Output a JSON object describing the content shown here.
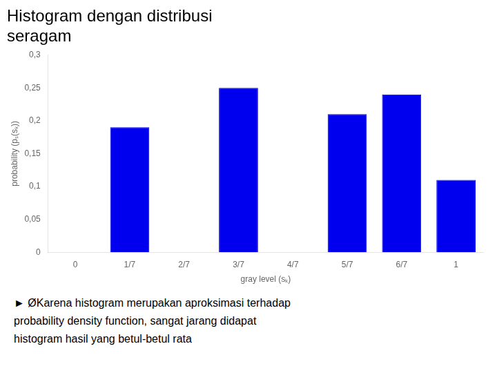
{
  "chart_data": {
    "type": "bar",
    "title": "Histogram dengan distribusi\nseragam",
    "categories": [
      "0",
      "1/7",
      "2/7",
      "3/7",
      "4/7",
      "5/7",
      "6/7",
      "1"
    ],
    "values": [
      0.0,
      0.19,
      0.0,
      0.25,
      0.0,
      0.21,
      0.24,
      0.11
    ],
    "color": "#0000EE",
    "xlabel": "gray level (sₖ)",
    "ylabel": "probability (pₛ(sₖ))",
    "ylim": [
      0,
      0.3
    ],
    "yticks": [
      0,
      {
        "value": 0.05,
        "label": "0,05"
      },
      {
        "value": 0.1,
        "label": "0,1"
      },
      {
        "value": 0.15,
        "label": "0,15"
      },
      {
        "value": 0.2,
        "label": "0,2"
      },
      {
        "value": 0.25,
        "label": "0,25"
      },
      {
        "value": 0.3,
        "label": "0,3"
      }
    ],
    "grid": false,
    "annotations": [
      "► ØKarena histogram merupakan aproksimasi terhadap",
      "probability density function, sangat jarang didapat",
      "histogram hasil yang betul-betul rata"
    ]
  }
}
